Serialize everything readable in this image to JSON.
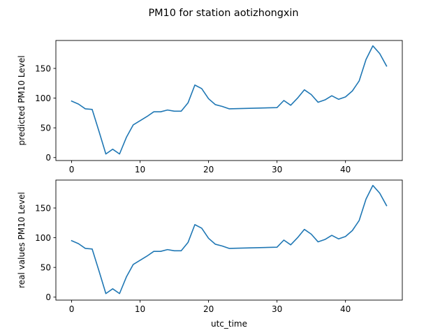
{
  "figure": {
    "title": "PM10 for station aotizhongxin"
  },
  "chart_data": [
    {
      "type": "line",
      "title": "",
      "xlabel": "",
      "ylabel": "predicted PM10 Level",
      "xlim": [
        -2.3,
        48.3
      ],
      "ylim": [
        -5,
        197
      ],
      "xticks": [
        0,
        10,
        20,
        30,
        40
      ],
      "yticks": [
        0,
        50,
        100,
        150
      ],
      "grid": false,
      "color": "#1f77b4",
      "series": [
        {
          "x": [
            0,
            1,
            2,
            3,
            4,
            5,
            6,
            7,
            8,
            9,
            10,
            11,
            12,
            13,
            14,
            15,
            16,
            17,
            18,
            19,
            20,
            21,
            22,
            23,
            30,
            31,
            32,
            33,
            34,
            35,
            36,
            37,
            38,
            39,
            40,
            41,
            42,
            43,
            44,
            45,
            46
          ],
          "y": [
            95,
            90,
            82,
            81,
            44,
            6,
            14,
            6,
            34,
            55,
            62,
            69,
            77,
            77,
            80,
            78,
            78,
            92,
            122,
            116,
            99,
            89,
            86,
            82,
            84,
            96,
            88,
            100,
            114,
            106,
            93,
            97,
            104,
            98,
            102,
            112,
            129,
            165,
            188,
            175,
            154
          ]
        }
      ]
    },
    {
      "type": "line",
      "title": "",
      "xlabel": "utc_time",
      "ylabel": "real values PM10 Level",
      "xlim": [
        -2.3,
        48.3
      ],
      "ylim": [
        -5,
        197
      ],
      "xticks": [
        0,
        10,
        20,
        30,
        40
      ],
      "yticks": [
        0,
        50,
        100,
        150
      ],
      "grid": false,
      "color": "#1f77b4",
      "series": [
        {
          "x": [
            0,
            1,
            2,
            3,
            4,
            5,
            6,
            7,
            8,
            9,
            10,
            11,
            12,
            13,
            14,
            15,
            16,
            17,
            18,
            19,
            20,
            21,
            22,
            23,
            30,
            31,
            32,
            33,
            34,
            35,
            36,
            37,
            38,
            39,
            40,
            41,
            42,
            43,
            44,
            45,
            46
          ],
          "y": [
            95,
            90,
            82,
            81,
            44,
            6,
            14,
            6,
            34,
            55,
            62,
            69,
            77,
            77,
            80,
            78,
            78,
            92,
            122,
            116,
            99,
            89,
            86,
            82,
            84,
            96,
            88,
            100,
            114,
            106,
            93,
            97,
            104,
            98,
            102,
            112,
            129,
            165,
            188,
            175,
            154
          ]
        }
      ]
    }
  ]
}
